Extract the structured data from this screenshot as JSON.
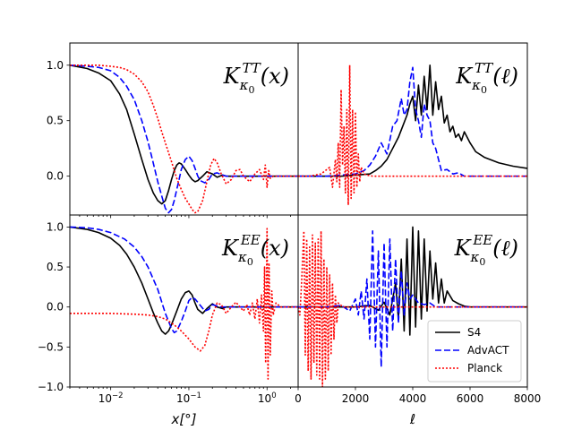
{
  "chart_data": [
    {
      "panel": "top-left",
      "type": "line",
      "title_main": "K",
      "title_sub": "κ",
      "title_subsub": "0",
      "title_sup": "TT",
      "title_arg": "(x)",
      "xscale": "log",
      "xlim": [
        0.003,
        2.5
      ],
      "ylim": [
        -0.35,
        1.2
      ],
      "yticks": [
        {
          "v": 1.0,
          "l": "1.0"
        },
        {
          "v": 0.5,
          "l": "0.5"
        },
        {
          "v": 0.0,
          "l": "0.0"
        }
      ],
      "series": [
        {
          "name": "S4",
          "color": "#000000",
          "style": "solid",
          "x": [
            0.003,
            0.005,
            0.007,
            0.01,
            0.013,
            0.016,
            0.02,
            0.025,
            0.03,
            0.035,
            0.04,
            0.045,
            0.05,
            0.055,
            0.06,
            0.065,
            0.07,
            0.075,
            0.08,
            0.09,
            0.1,
            0.11,
            0.12,
            0.13,
            0.15,
            0.17,
            0.2,
            0.23,
            0.27,
            0.3,
            0.4,
            0.5,
            0.7,
            1.0,
            1.5,
            2.0,
            2.5
          ],
          "y": [
            1.0,
            0.97,
            0.93,
            0.86,
            0.74,
            0.6,
            0.38,
            0.15,
            -0.03,
            -0.15,
            -0.22,
            -0.25,
            -0.22,
            -0.13,
            -0.03,
            0.05,
            0.1,
            0.12,
            0.11,
            0.06,
            0.01,
            -0.03,
            -0.05,
            -0.04,
            0.0,
            0.04,
            0.02,
            -0.01,
            0.01,
            0.0,
            0.0,
            0.0,
            0.0,
            0.0,
            0.0,
            0.0,
            0.0
          ]
        },
        {
          "name": "AdvACT",
          "color": "#0000ff",
          "style": "dashed",
          "x": [
            0.003,
            0.005,
            0.007,
            0.01,
            0.013,
            0.016,
            0.02,
            0.025,
            0.03,
            0.035,
            0.04,
            0.045,
            0.05,
            0.055,
            0.06,
            0.065,
            0.07,
            0.075,
            0.08,
            0.09,
            0.1,
            0.11,
            0.12,
            0.13,
            0.14,
            0.16,
            0.18,
            0.2,
            0.23,
            0.27,
            0.3,
            0.4,
            0.5,
            0.7,
            1.0,
            1.5,
            2.5
          ],
          "y": [
            1.0,
            0.99,
            0.98,
            0.95,
            0.89,
            0.81,
            0.69,
            0.5,
            0.31,
            0.12,
            -0.05,
            -0.18,
            -0.29,
            -0.33,
            -0.3,
            -0.22,
            -0.12,
            -0.03,
            0.06,
            0.15,
            0.18,
            0.14,
            0.07,
            0.0,
            -0.04,
            -0.06,
            -0.03,
            0.02,
            0.03,
            0.01,
            0.0,
            0.0,
            0.0,
            0.0,
            0.0,
            0.0,
            0.0
          ]
        },
        {
          "name": "Planck",
          "color": "#ff0000",
          "style": "dotted",
          "x": [
            0.003,
            0.005,
            0.007,
            0.01,
            0.013,
            0.016,
            0.02,
            0.025,
            0.03,
            0.035,
            0.04,
            0.045,
            0.05,
            0.06,
            0.07,
            0.08,
            0.09,
            0.1,
            0.11,
            0.12,
            0.13,
            0.15,
            0.17,
            0.19,
            0.21,
            0.23,
            0.26,
            0.3,
            0.35,
            0.4,
            0.45,
            0.5,
            0.6,
            0.7,
            0.8,
            0.9,
            0.95,
            1.0,
            1.05,
            1.1,
            1.2,
            1.4,
            2.0,
            2.5
          ],
          "y": [
            1.0,
            1.0,
            1.0,
            0.99,
            0.98,
            0.96,
            0.92,
            0.85,
            0.76,
            0.64,
            0.52,
            0.4,
            0.3,
            0.13,
            -0.02,
            -0.12,
            -0.2,
            -0.25,
            -0.3,
            -0.33,
            -0.32,
            -0.22,
            -0.05,
            0.1,
            0.16,
            0.12,
            0.02,
            -0.07,
            -0.03,
            0.05,
            0.06,
            0.0,
            -0.05,
            0.02,
            0.06,
            -0.03,
            0.1,
            -0.1,
            0.05,
            -0.02,
            0.0,
            0.0,
            0.0,
            0.0
          ]
        }
      ]
    },
    {
      "panel": "top-right",
      "type": "line",
      "title_main": "K",
      "title_sub": "κ",
      "title_subsub": "0",
      "title_sup": "TT",
      "title_arg": "(ℓ)",
      "xscale": "linear",
      "xlim": [
        0,
        8000
      ],
      "ylim": [
        -0.35,
        1.2
      ],
      "series": [
        {
          "name": "S4",
          "color": "#000000",
          "style": "solid",
          "x": [
            0,
            1500,
            2000,
            2500,
            2700,
            2900,
            3100,
            3300,
            3500,
            3650,
            3800,
            3900,
            4000,
            4100,
            4200,
            4300,
            4400,
            4500,
            4600,
            4700,
            4800,
            4900,
            5000,
            5100,
            5200,
            5300,
            5400,
            5500,
            5600,
            5700,
            5800,
            5900,
            6000,
            6200,
            6500,
            7000,
            7500,
            8000
          ],
          "y": [
            0.0,
            0.0,
            0.01,
            0.02,
            0.05,
            0.09,
            0.15,
            0.25,
            0.35,
            0.45,
            0.55,
            0.65,
            0.72,
            0.5,
            0.82,
            0.55,
            0.9,
            0.6,
            1.0,
            0.55,
            0.85,
            0.6,
            0.72,
            0.48,
            0.55,
            0.4,
            0.45,
            0.35,
            0.38,
            0.32,
            0.4,
            0.35,
            0.3,
            0.22,
            0.17,
            0.12,
            0.09,
            0.07
          ]
        },
        {
          "name": "AdvACT",
          "color": "#0000ff",
          "style": "dashed",
          "x": [
            0,
            1000,
            1500,
            2000,
            2300,
            2500,
            2700,
            2900,
            3100,
            3300,
            3450,
            3600,
            3700,
            3800,
            3900,
            4000,
            4100,
            4200,
            4300,
            4400,
            4500,
            4600,
            4700,
            4800,
            5000,
            5200,
            5400,
            5600,
            5800,
            8000
          ],
          "y": [
            0.0,
            0.0,
            0.01,
            0.02,
            0.05,
            0.1,
            0.18,
            0.3,
            0.2,
            0.45,
            0.5,
            0.7,
            0.55,
            0.6,
            0.85,
            0.98,
            0.6,
            0.5,
            0.35,
            0.65,
            0.55,
            0.5,
            0.3,
            0.25,
            0.05,
            0.06,
            0.02,
            0.03,
            0.0,
            0.0
          ]
        },
        {
          "name": "Planck",
          "color": "#ff0000",
          "style": "dotted",
          "x": [
            0,
            400,
            600,
            800,
            900,
            1000,
            1100,
            1200,
            1300,
            1350,
            1400,
            1450,
            1500,
            1550,
            1600,
            1650,
            1700,
            1750,
            1800,
            1850,
            1900,
            1950,
            2000,
            2050,
            2100,
            2150,
            2200,
            2300,
            2400,
            2600,
            3000,
            8000
          ],
          "y": [
            0.0,
            0.0,
            0.01,
            0.02,
            0.04,
            0.06,
            0.08,
            -0.1,
            0.15,
            -0.05,
            0.3,
            -0.1,
            0.78,
            0.1,
            0.45,
            -0.15,
            0.6,
            -0.26,
            1.0,
            -0.2,
            0.6,
            -0.15,
            0.58,
            -0.1,
            0.2,
            -0.05,
            0.08,
            0.02,
            0.01,
            0.0,
            0.0,
            0.0
          ]
        }
      ]
    },
    {
      "panel": "bottom-left",
      "type": "line",
      "title_main": "K",
      "title_sub": "κ",
      "title_subsub": "0",
      "title_sup": "EE",
      "title_arg": "(x)",
      "xscale": "log",
      "xlim": [
        0.003,
        2.5
      ],
      "ylim": [
        -1.0,
        1.15
      ],
      "xlabel": "x[°]",
      "xticks": [
        {
          "v": 0.01,
          "base": "10",
          "exp": "−2"
        },
        {
          "v": 0.1,
          "base": "10",
          "exp": "−1"
        },
        {
          "v": 1.0,
          "base": "10",
          "exp": "0"
        }
      ],
      "yticks": [
        {
          "v": 1.0,
          "l": "1.0"
        },
        {
          "v": 0.5,
          "l": "0.5"
        },
        {
          "v": 0.0,
          "l": "0.0"
        },
        {
          "v": -0.5,
          "l": "−0.5"
        },
        {
          "v": -1.0,
          "l": "−1.0"
        }
      ],
      "series": [
        {
          "name": "S4",
          "color": "#000000",
          "style": "solid",
          "x": [
            0.003,
            0.005,
            0.007,
            0.01,
            0.013,
            0.016,
            0.02,
            0.025,
            0.03,
            0.035,
            0.04,
            0.045,
            0.05,
            0.055,
            0.06,
            0.07,
            0.08,
            0.09,
            0.1,
            0.11,
            0.12,
            0.13,
            0.15,
            0.17,
            0.2,
            0.23,
            0.27,
            0.3,
            0.4,
            0.5,
            0.7,
            1.0,
            1.5,
            2.5
          ],
          "y": [
            1.0,
            0.97,
            0.93,
            0.86,
            0.77,
            0.66,
            0.5,
            0.3,
            0.1,
            -0.07,
            -0.2,
            -0.3,
            -0.34,
            -0.3,
            -0.22,
            -0.05,
            0.1,
            0.18,
            0.2,
            0.15,
            0.05,
            -0.03,
            -0.08,
            -0.02,
            0.04,
            0.0,
            -0.02,
            0.0,
            0.0,
            0.0,
            0.0,
            0.0,
            0.0,
            0.0
          ]
        },
        {
          "name": "AdvACT",
          "color": "#0000ff",
          "style": "dashed",
          "x": [
            0.003,
            0.005,
            0.007,
            0.01,
            0.015,
            0.02,
            0.025,
            0.03,
            0.04,
            0.05,
            0.06,
            0.065,
            0.07,
            0.08,
            0.09,
            0.1,
            0.11,
            0.12,
            0.14,
            0.16,
            0.18,
            0.2,
            0.25,
            0.3,
            0.4,
            0.5,
            0.7,
            1.0,
            1.5,
            2.5
          ],
          "y": [
            1.0,
            0.99,
            0.97,
            0.93,
            0.85,
            0.75,
            0.63,
            0.5,
            0.22,
            -0.08,
            -0.27,
            -0.32,
            -0.3,
            -0.18,
            -0.05,
            0.08,
            0.12,
            0.1,
            0.02,
            -0.05,
            -0.03,
            0.03,
            0.0,
            0.0,
            0.0,
            0.0,
            0.0,
            0.0,
            0.0,
            0.0
          ]
        },
        {
          "name": "Planck",
          "color": "#ff0000",
          "style": "dotted",
          "x": [
            0.003,
            0.01,
            0.02,
            0.03,
            0.04,
            0.05,
            0.06,
            0.07,
            0.08,
            0.1,
            0.12,
            0.14,
            0.16,
            0.18,
            0.2,
            0.23,
            0.26,
            0.3,
            0.35,
            0.4,
            0.45,
            0.5,
            0.55,
            0.6,
            0.65,
            0.7,
            0.75,
            0.8,
            0.85,
            0.9,
            0.93,
            0.96,
            1.0,
            1.03,
            1.06,
            1.1,
            1.15,
            1.2,
            1.3,
            1.5,
            2.5
          ],
          "y": [
            -0.08,
            -0.08,
            -0.09,
            -0.1,
            -0.12,
            -0.15,
            -0.2,
            -0.25,
            -0.3,
            -0.4,
            -0.5,
            -0.55,
            -0.48,
            -0.3,
            -0.1,
            0.05,
            0.03,
            -0.08,
            0.0,
            0.06,
            0.0,
            -0.05,
            0.03,
            -0.1,
            0.05,
            -0.15,
            0.1,
            -0.2,
            0.15,
            -0.3,
            0.5,
            -0.7,
            0.98,
            -0.9,
            0.55,
            -0.6,
            0.2,
            -0.1,
            0.05,
            0.0,
            0.0
          ]
        }
      ]
    },
    {
      "panel": "bottom-right",
      "type": "line",
      "title_main": "K",
      "title_sub": "κ",
      "title_subsub": "0",
      "title_sup": "EE",
      "title_arg": "(ℓ)",
      "xscale": "linear",
      "xlim": [
        0,
        8000
      ],
      "ylim": [
        -1.0,
        1.15
      ],
      "xlabel": "ℓ",
      "xticks": [
        {
          "v": 0,
          "l": "0"
        },
        {
          "v": 2000,
          "l": "2000"
        },
        {
          "v": 4000,
          "l": "4000"
        },
        {
          "v": 6000,
          "l": "6000"
        },
        {
          "v": 8000,
          "l": "8000"
        }
      ],
      "series": [
        {
          "name": "S4",
          "color": "#000000",
          "style": "solid",
          "x": [
            0,
            1500,
            2000,
            2500,
            2800,
            3000,
            3200,
            3400,
            3500,
            3600,
            3700,
            3800,
            3900,
            4000,
            4100,
            4200,
            4300,
            4400,
            4500,
            4600,
            4700,
            4800,
            4900,
            5000,
            5100,
            5200,
            5400,
            5600,
            5800,
            6000,
            8000
          ],
          "y": [
            0.0,
            0.0,
            0.0,
            0.02,
            -0.04,
            0.06,
            -0.1,
            0.3,
            -0.15,
            0.6,
            -0.3,
            0.85,
            -0.35,
            1.0,
            -0.25,
            0.95,
            -0.15,
            0.85,
            -0.05,
            0.7,
            0.1,
            0.55,
            0.05,
            0.35,
            0.05,
            0.2,
            0.08,
            0.04,
            0.01,
            0.0,
            0.0
          ]
        },
        {
          "name": "AdvACT",
          "color": "#0000ff",
          "style": "dashed",
          "x": [
            0,
            1000,
            1500,
            1800,
            2000,
            2100,
            2200,
            2300,
            2400,
            2500,
            2600,
            2700,
            2800,
            2900,
            3000,
            3100,
            3200,
            3300,
            3400,
            3500,
            3600,
            3700,
            3800,
            3900,
            4000,
            4200,
            4400,
            4600,
            4800,
            8000
          ],
          "y": [
            0.0,
            0.0,
            0.02,
            -0.05,
            0.1,
            -0.1,
            0.2,
            -0.15,
            0.35,
            -0.4,
            0.95,
            -0.5,
            0.7,
            -0.75,
            0.8,
            -0.5,
            0.85,
            -0.3,
            0.6,
            -0.2,
            0.45,
            -0.1,
            0.3,
            0.1,
            0.15,
            0.05,
            0.03,
            0.05,
            0.0,
            0.0
          ]
        },
        {
          "name": "Planck",
          "color": "#ff0000",
          "style": "dotted",
          "x": [
            0,
            60,
            120,
            200,
            250,
            300,
            350,
            400,
            450,
            500,
            550,
            600,
            650,
            700,
            750,
            800,
            850,
            900,
            950,
            1000,
            1050,
            1100,
            1150,
            1200,
            1250,
            1300,
            1350,
            1400,
            1500,
            1600,
            1800,
            2000,
            8000
          ],
          "y": [
            0.0,
            -0.1,
            0.3,
            0.95,
            -0.6,
            0.85,
            -0.8,
            0.75,
            -0.9,
            0.9,
            -0.7,
            0.8,
            -0.85,
            0.85,
            -0.9,
            0.95,
            -1.0,
            0.6,
            -0.9,
            0.5,
            -0.8,
            0.4,
            -0.6,
            0.3,
            -0.4,
            0.15,
            -0.2,
            0.05,
            0.02,
            0.0,
            0.0,
            0.0,
            0.0
          ]
        }
      ]
    }
  ],
  "legend": {
    "placement": "lower-right of bottom-right panel",
    "items": [
      {
        "label": "S4",
        "color": "#000000",
        "style": "solid"
      },
      {
        "label": "AdvACT",
        "color": "#0000ff",
        "style": "dashed"
      },
      {
        "label": "Planck",
        "color": "#ff0000",
        "style": "dotted"
      }
    ]
  }
}
